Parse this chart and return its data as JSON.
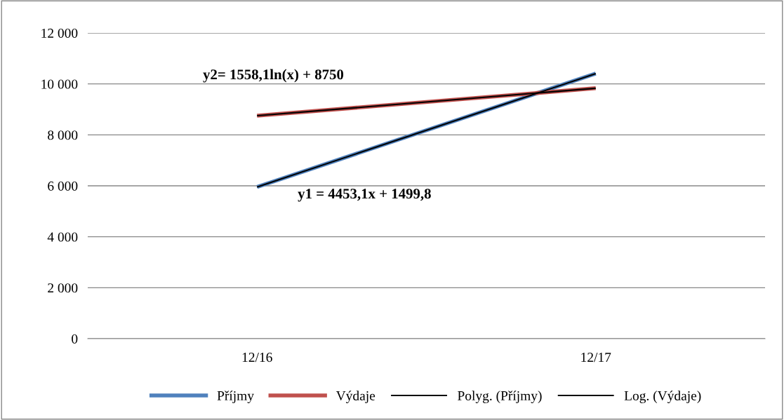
{
  "chart_data": {
    "type": "line",
    "categories": [
      "12/16",
      "12/17"
    ],
    "series": [
      {
        "name": "Příjmy",
        "color": "#4f81bd",
        "values": [
          5953,
          10406
        ]
      },
      {
        "name": "Výdaje",
        "color": "#c0504d",
        "values": [
          8750,
          9830
        ]
      },
      {
        "name": "Polyg. (Příjmy)",
        "color": "#000000",
        "values": [
          5953,
          10406
        ]
      },
      {
        "name": "Log. (Výdaje)",
        "color": "#000000",
        "values": [
          8750,
          9830
        ]
      }
    ],
    "ylim": [
      0,
      12000
    ],
    "yticks": [
      {
        "value": 0,
        "label": "0"
      },
      {
        "value": 2000,
        "label": "2 000"
      },
      {
        "value": 4000,
        "label": "4 000"
      },
      {
        "value": 6000,
        "label": "6 000"
      },
      {
        "value": 8000,
        "label": "8 000"
      },
      {
        "value": 10000,
        "label": "10 000"
      },
      {
        "value": 12000,
        "label": "12 000"
      }
    ],
    "grid": "y",
    "legend": "bottom",
    "marker": "none",
    "line_style": "solid",
    "annotations": [
      "y2= 1558,1ln(x) + 8750",
      "y1 = 4453,1x + 1499,8"
    ]
  }
}
